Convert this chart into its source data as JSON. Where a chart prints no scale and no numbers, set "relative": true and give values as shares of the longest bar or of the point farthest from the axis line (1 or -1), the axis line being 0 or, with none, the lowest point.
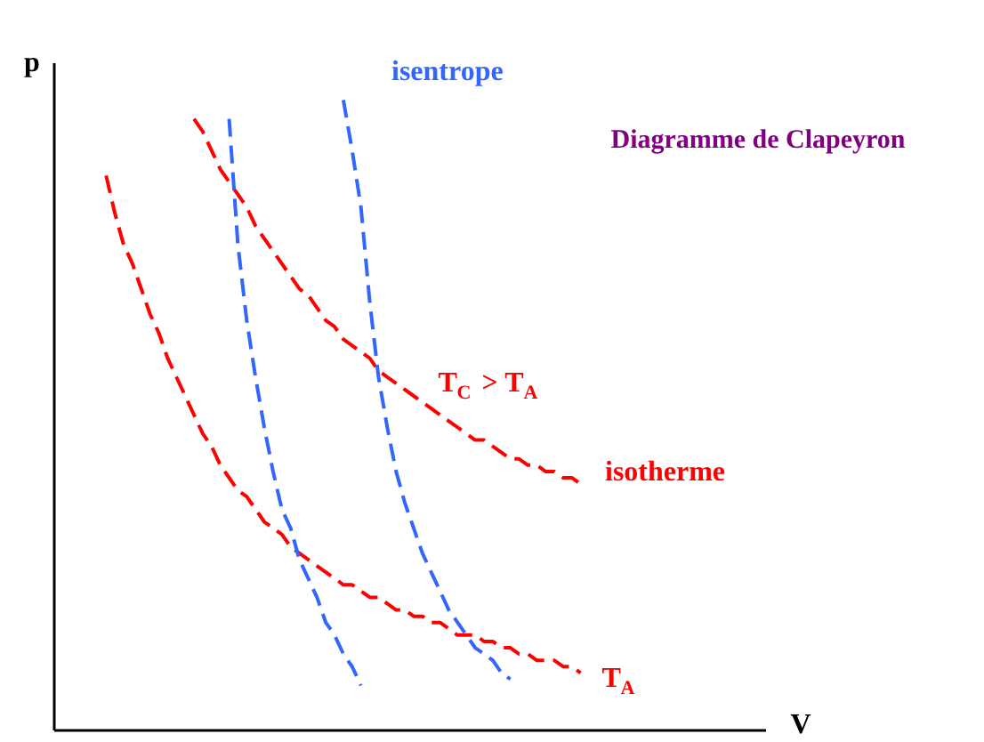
{
  "chart_data": {
    "type": "line",
    "relative": true,
    "title": "Diagramme de Clapeyron",
    "xlabel": "V",
    "ylabel": "p",
    "line_style": "dashed",
    "categories": [
      null,
      null,
      null,
      null,
      null,
      null,
      null,
      null,
      null,
      null,
      null,
      null,
      null,
      null,
      null,
      null,
      null,
      null,
      null,
      null,
      null,
      null,
      null,
      null,
      null,
      null,
      null,
      null,
      null,
      null,
      null,
      null,
      null,
      null,
      null,
      null,
      null,
      null,
      null,
      null,
      null,
      null,
      null,
      null,
      null,
      null,
      null,
      null,
      null,
      null,
      null,
      null,
      null,
      null,
      null,
      null,
      null,
      null,
      null,
      null,
      null,
      null,
      null,
      null,
      null,
      null,
      null,
      null,
      null,
      null,
      null,
      null,
      null,
      null,
      null,
      null,
      null,
      null,
      null,
      null,
      null
    ],
    "series": [
      {
        "name": "T$_{A}$",
        "color": "#ff0000",
        "values": [
          null,
          null,
          null,
          null,
          null,
          null,
          0.88,
          0.82,
          0.77,
          0.74,
          0.7,
          0.66,
          0.63,
          0.59,
          0.56,
          0.53,
          0.5,
          0.47,
          0.45,
          0.42,
          0.4,
          0.38,
          0.37,
          0.35,
          0.33,
          0.32,
          0.31,
          0.29,
          0.28,
          0.27,
          0.26,
          0.25,
          0.24,
          0.23,
          0.23,
          0.22,
          0.21,
          0.21,
          0.2,
          0.19,
          0.19,
          0.18,
          0.18,
          0.17,
          0.17,
          0.16,
          0.15,
          0.15,
          0.15,
          0.14,
          0.14,
          0.13,
          0.13,
          0.12,
          0.12,
          0.11,
          0.11,
          0.11,
          0.1,
          0.1,
          0.09,
          null,
          null,
          null,
          null,
          null,
          null,
          null,
          null,
          null,
          null,
          null,
          null,
          null,
          null,
          null,
          null,
          null,
          null,
          null,
          null
        ]
      },
      {
        "name": "T$_{C}$ > T$_{A}$",
        "color": "#ff0000",
        "values": [
          null,
          null,
          null,
          null,
          null,
          null,
          null,
          null,
          null,
          null,
          null,
          null,
          null,
          null,
          null,
          null,
          0.97,
          0.95,
          0.92,
          0.89,
          0.87,
          0.85,
          0.83,
          0.8,
          0.78,
          0.76,
          0.74,
          0.72,
          0.7,
          0.69,
          0.67,
          0.65,
          0.64,
          0.62,
          0.61,
          0.6,
          0.59,
          0.57,
          0.56,
          0.55,
          0.54,
          0.53,
          0.52,
          0.51,
          0.5,
          0.49,
          0.48,
          0.47,
          0.46,
          0.46,
          0.45,
          0.44,
          0.43,
          0.43,
          0.42,
          0.42,
          0.41,
          0.41,
          0.4,
          0.4,
          0.39,
          null,
          null,
          null,
          null,
          null,
          null,
          null,
          null,
          null,
          null,
          null,
          null,
          null,
          null,
          null,
          null,
          null,
          null,
          null,
          null
        ]
      },
      {
        "color": "#3366ff",
        "values": [
          null,
          null,
          null,
          null,
          null,
          null,
          null,
          null,
          null,
          null,
          null,
          null,
          null,
          null,
          null,
          null,
          null,
          null,
          null,
          null,
          0.97,
          0.77,
          0.65,
          0.56,
          0.48,
          0.41,
          0.35,
          0.32,
          0.27,
          0.24,
          0.21,
          0.17,
          0.15,
          0.12,
          0.1,
          0.07,
          null,
          null,
          null,
          null,
          null,
          null,
          null,
          null,
          null,
          null,
          null,
          null,
          null,
          null,
          null,
          null,
          null,
          null,
          null,
          null,
          null,
          null,
          null,
          null,
          null,
          null,
          null,
          null,
          null,
          null,
          null,
          null,
          null,
          null,
          null,
          null,
          null,
          null,
          null,
          null,
          null,
          null,
          null,
          null,
          null
        ]
      },
      {
        "color": "#3366ff",
        "values": [
          null,
          null,
          null,
          null,
          null,
          null,
          null,
          null,
          null,
          null,
          null,
          null,
          null,
          null,
          null,
          null,
          null,
          null,
          null,
          null,
          null,
          null,
          null,
          null,
          null,
          null,
          null,
          null,
          null,
          null,
          null,
          null,
          null,
          1.0,
          0.92,
          0.83,
          0.68,
          0.56,
          0.48,
          0.41,
          0.36,
          0.32,
          0.28,
          0.25,
          0.22,
          0.19,
          0.17,
          0.15,
          0.13,
          0.12,
          0.11,
          0.09,
          0.08,
          null,
          null,
          null,
          null,
          null,
          null,
          null,
          null,
          null,
          null,
          null,
          null,
          null,
          null,
          null,
          null,
          null,
          null,
          null,
          null,
          null,
          null,
          null,
          null,
          null,
          null,
          null,
          null
        ]
      }
    ],
    "annotations": [
      "isentrope",
      "isotherme"
    ]
  }
}
